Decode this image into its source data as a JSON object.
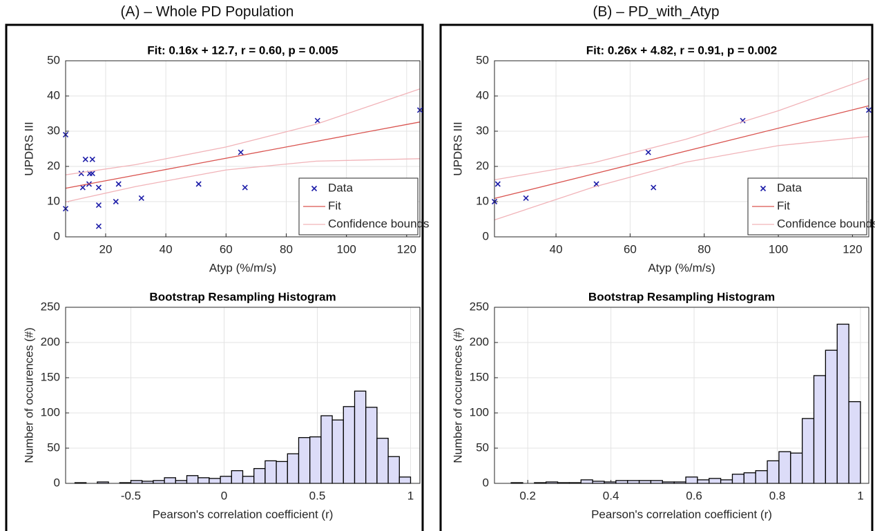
{
  "panels": [
    {
      "title": "(A) – Whole PD Population"
    },
    {
      "title": "(B) – PD_with_Atyp"
    }
  ],
  "chart_data": [
    {
      "type": "scatter",
      "title": "Fit: 0.16x + 12.7, r = 0.60, p = 0.005",
      "xlabel": "Atyp (%/m/s)",
      "ylabel": "UPDRS III",
      "xlim": [
        6.7,
        124.4
      ],
      "xticks": [
        20,
        40,
        60,
        80,
        100,
        120
      ],
      "ylim": [
        0,
        50
      ],
      "yticks": [
        0,
        10,
        20,
        30,
        40,
        50
      ],
      "grid": true,
      "legend": "lower right",
      "series": [
        {
          "name": "Data",
          "color": "#1c1ca8",
          "marker": "x",
          "x": [
            6.7,
            6.7,
            11.9,
            12.4,
            13.3,
            14.5,
            14.7,
            15.6,
            15.6,
            17.7,
            17.7,
            17.7,
            23.4,
            24.3,
            31.9,
            50.9,
            64.9,
            66.3,
            90.4,
            124.4
          ],
          "values": [
            29,
            8,
            18,
            14,
            22,
            15,
            18,
            22,
            18,
            14,
            9,
            3,
            10,
            15,
            11,
            15,
            24,
            14,
            33,
            36
          ]
        },
        {
          "name": "Fit",
          "color": "#d9534f",
          "x": [
            6.7,
            124.4
          ],
          "values": [
            13.8,
            32.6
          ]
        },
        {
          "name": "Confidence bounds",
          "color": "#f1b3b8",
          "x": [
            6.7,
            30,
            60,
            90,
            124.4
          ],
          "upper": [
            17.6,
            20.5,
            25.5,
            32,
            42
          ],
          "lower": [
            9.9,
            14.3,
            19,
            21.5,
            22.2
          ]
        }
      ]
    },
    {
      "type": "histogram",
      "title": "Bootstrap Resampling Histogram",
      "xlabel": "Pearson's correlation coefficient (r)",
      "ylabel": "Number of occurences (#)",
      "xlim": [
        -0.85,
        1.05
      ],
      "xticks": [
        -0.5,
        0,
        0.5,
        1
      ],
      "ylim": [
        0,
        250
      ],
      "yticks": [
        0,
        50,
        100,
        150,
        200,
        250
      ],
      "grid": true,
      "color": "#dcdcf8",
      "bins": [
        -0.8,
        -0.74,
        -0.68,
        -0.62,
        -0.56,
        -0.5,
        -0.44,
        -0.38,
        -0.32,
        -0.26,
        -0.2,
        -0.14,
        -0.08,
        -0.02,
        0.04,
        0.1,
        0.16,
        0.22,
        0.28,
        0.34,
        0.4,
        0.46,
        0.52,
        0.58,
        0.64,
        0.7,
        0.76,
        0.82,
        0.88,
        0.94,
        1.0
      ],
      "values": [
        1,
        0,
        2,
        0,
        1,
        4,
        3,
        4,
        8,
        4,
        11,
        8,
        7,
        10,
        18,
        10,
        21,
        32,
        31,
        42,
        65,
        66,
        96,
        90,
        109,
        131,
        108,
        64,
        38,
        9
      ]
    },
    {
      "type": "scatter",
      "title": "Fit: 0.26x + 4.82, r = 0.91, p = 0.002",
      "xlabel": "Atyp (%/m/s)",
      "ylabel": "UPDRS III",
      "xlim": [
        23.4,
        124.4
      ],
      "xticks": [
        40,
        60,
        80,
        100,
        120
      ],
      "ylim": [
        0,
        50
      ],
      "yticks": [
        0,
        10,
        20,
        30,
        40,
        50
      ],
      "grid": true,
      "legend": "lower right",
      "series": [
        {
          "name": "Data",
          "color": "#1c1ca8",
          "marker": "x",
          "x": [
            23.4,
            24.3,
            31.9,
            50.9,
            64.9,
            66.3,
            90.4,
            124.4
          ],
          "values": [
            10,
            15,
            11,
            15,
            24,
            14,
            33,
            36
          ]
        },
        {
          "name": "Fit",
          "color": "#d9534f",
          "x": [
            23.4,
            124.4
          ],
          "values": [
            10.9,
            37.2
          ]
        },
        {
          "name": "Confidence bounds",
          "color": "#f1b3b8",
          "x": [
            23.4,
            50,
            75,
            100,
            124.4
          ],
          "upper": [
            16.2,
            21,
            27.7,
            35.8,
            45
          ],
          "lower": [
            4.8,
            14.1,
            21.2,
            25.9,
            28.5
          ]
        }
      ]
    },
    {
      "type": "histogram",
      "title": "Bootstrap Resampling Histogram",
      "xlabel": "Pearson's correlation coefficient (r)",
      "ylabel": "Number of occurences (#)",
      "xlim": [
        0.12,
        1.02
      ],
      "xticks": [
        0.2,
        0.4,
        0.6,
        0.8,
        1
      ],
      "ylim": [
        0,
        250
      ],
      "yticks": [
        0,
        50,
        100,
        150,
        200,
        250
      ],
      "grid": true,
      "color": "#dcdcf8",
      "bins": [
        0.16,
        0.188,
        0.216,
        0.244,
        0.272,
        0.3,
        0.328,
        0.356,
        0.384,
        0.412,
        0.44,
        0.468,
        0.496,
        0.524,
        0.552,
        0.58,
        0.608,
        0.636,
        0.664,
        0.692,
        0.72,
        0.748,
        0.776,
        0.804,
        0.832,
        0.86,
        0.888,
        0.916,
        0.944,
        0.972,
        1.0
      ],
      "values": [
        1,
        0,
        1,
        2,
        1,
        1,
        5,
        3,
        2,
        4,
        4,
        4,
        4,
        2,
        2,
        9,
        5,
        7,
        5,
        13,
        15,
        18,
        32,
        45,
        43,
        92,
        153,
        189,
        226,
        116
      ]
    }
  ]
}
